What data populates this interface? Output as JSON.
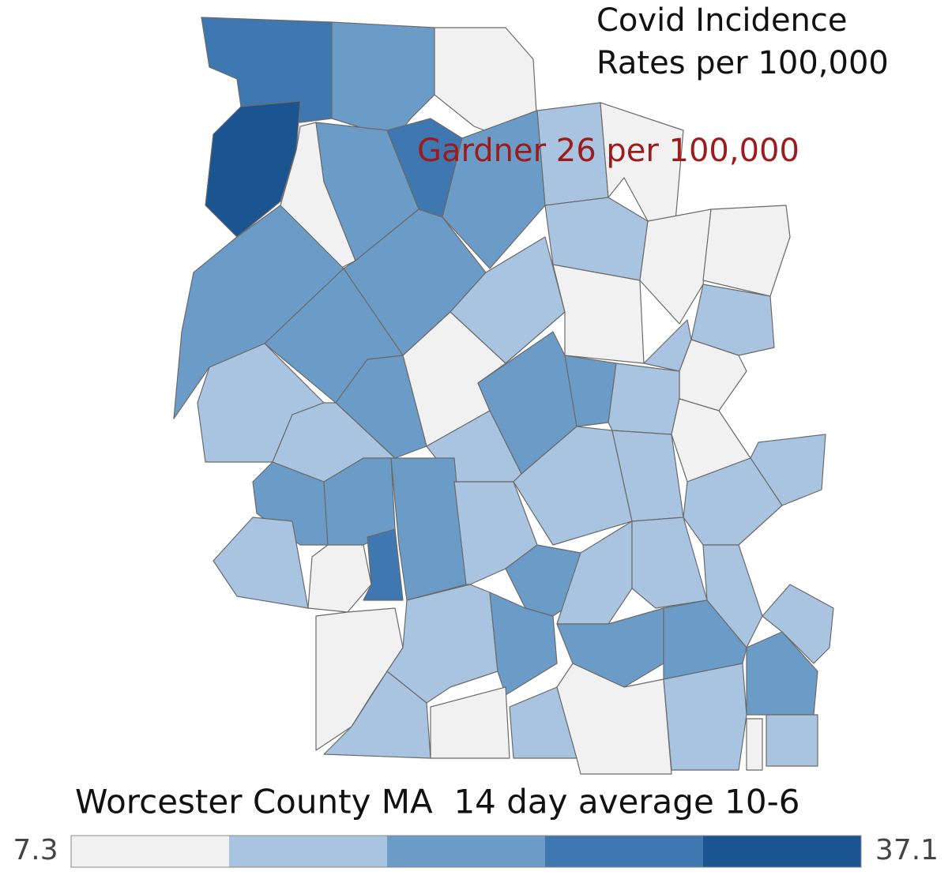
{
  "title": [
    "Covid Incidence",
    "Rates per 100,000"
  ],
  "annotation": "Gardner 26 per 100,000",
  "footer": "Worcester County MA  14 day average 10-6",
  "legend": {
    "min": 7.3,
    "max": 37.1,
    "colors": [
      "#f1f1f1",
      "#a9c4e0",
      "#6b9cc8",
      "#3f77b0",
      "#1a5592"
    ]
  }
}
